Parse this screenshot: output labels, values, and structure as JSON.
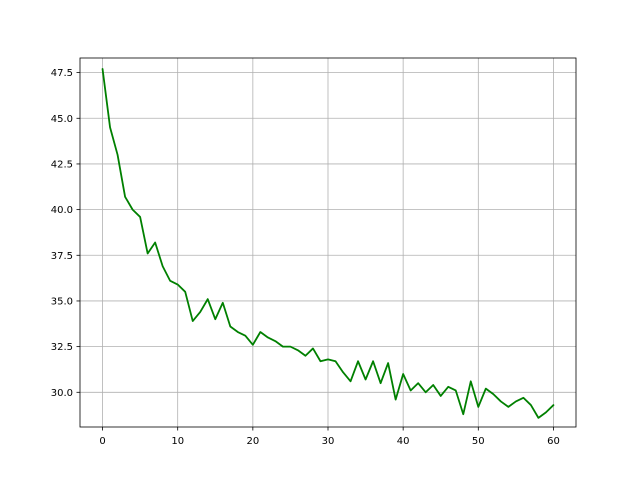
{
  "chart_data": {
    "type": "line",
    "title": "",
    "xlabel": "",
    "ylabel": "",
    "xlim": [
      -3,
      63
    ],
    "ylim": [
      28.1,
      48.3
    ],
    "grid": true,
    "x_ticks": [
      0,
      10,
      20,
      30,
      40,
      50,
      60
    ],
    "x_tick_labels": [
      "0",
      "10",
      "20",
      "30",
      "40",
      "50",
      "60"
    ],
    "y_ticks": [
      30.0,
      32.5,
      35.0,
      37.5,
      40.0,
      42.5,
      45.0,
      47.5
    ],
    "y_tick_labels": [
      "30.0",
      "32.5",
      "35.0",
      "37.5",
      "40.0",
      "42.5",
      "45.0",
      "47.5"
    ],
    "series": [
      {
        "color": "#008000",
        "x": [
          0,
          1,
          2,
          3,
          4,
          5,
          6,
          7,
          8,
          9,
          10,
          11,
          12,
          13,
          14,
          15,
          16,
          17,
          18,
          19,
          20,
          21,
          22,
          23,
          24,
          25,
          26,
          27,
          28,
          29,
          30,
          31,
          32,
          33,
          34,
          35,
          36,
          37,
          38,
          39,
          40,
          41,
          42,
          43,
          44,
          45,
          46,
          47,
          48,
          49,
          50,
          51,
          52,
          53,
          54,
          55,
          56,
          57,
          58,
          59,
          60
        ],
        "values": [
          47.7,
          44.5,
          43.0,
          40.7,
          40.0,
          39.6,
          37.6,
          38.2,
          36.9,
          36.1,
          35.9,
          35.5,
          33.9,
          34.4,
          35.1,
          34.0,
          34.9,
          33.6,
          33.3,
          33.1,
          32.6,
          33.3,
          33.0,
          32.8,
          32.5,
          32.5,
          32.3,
          32.0,
          32.4,
          31.7,
          31.8,
          31.7,
          31.1,
          30.6,
          31.7,
          30.7,
          31.7,
          30.5,
          31.6,
          29.6,
          31.0,
          30.1,
          30.5,
          30.0,
          30.4,
          29.8,
          30.3,
          30.1,
          28.8,
          30.6,
          29.2,
          30.2,
          29.9,
          29.5,
          29.2,
          29.5,
          29.7,
          29.3,
          28.6,
          28.9,
          29.3
        ]
      }
    ]
  }
}
